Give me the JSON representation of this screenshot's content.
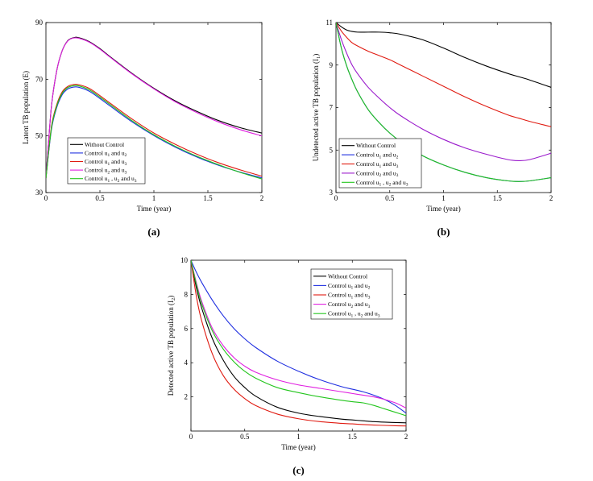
{
  "chart_data": [
    {
      "id": "a",
      "type": "line",
      "panel_label": "(a)",
      "xlabel": "Time (year)",
      "ylabel": "Latent TB population (E)",
      "xlim": [
        0,
        2
      ],
      "ylim": [
        30,
        90
      ],
      "xticks": [
        0,
        0.5,
        1,
        1.5,
        2
      ],
      "xtick_labels": [
        "0",
        "0.5",
        "1",
        "1.5",
        "2"
      ],
      "yticks": [
        30,
        50,
        70,
        90
      ],
      "ytick_labels": [
        "30",
        "50",
        "70",
        "90"
      ],
      "legend_position": "bottom-left",
      "x": [
        0,
        0.05,
        0.1,
        0.15,
        0.2,
        0.25,
        0.3,
        0.4,
        0.5,
        0.6,
        0.8,
        1.0,
        1.2,
        1.4,
        1.6,
        1.8,
        2.0
      ],
      "series": [
        {
          "name": "Without Control",
          "label_text": "Without Control",
          "color": "#000000",
          "values": [
            35,
            60,
            73,
            80,
            83.5,
            84.6,
            84.7,
            83.3,
            80.8,
            77.8,
            72.0,
            66.8,
            62.3,
            58.6,
            55.4,
            52.9,
            51.0
          ]
        },
        {
          "name": "Control u1 and u2",
          "label_text": "Control u and u",
          "subs": [
            "1",
            "2"
          ],
          "color": "#1f2fe0",
          "values": [
            35,
            52,
            60,
            64.5,
            66.5,
            67.2,
            67.2,
            65.8,
            63.2,
            60.4,
            54.9,
            50.1,
            46.0,
            42.5,
            39.6,
            37.2,
            35.2
          ]
        },
        {
          "name": "Control u1 and u3",
          "label_text": "Control u and u",
          "subs": [
            "1",
            "3"
          ],
          "color": "#e01a10",
          "values": [
            35,
            53,
            61,
            65.5,
            67.4,
            68.1,
            68.1,
            66.8,
            64.2,
            61.4,
            55.9,
            51.0,
            47.0,
            43.5,
            40.5,
            38.0,
            35.8
          ]
        },
        {
          "name": "Control u2 and u3",
          "label_text": "Control u and u",
          "subs": [
            "2",
            "3"
          ],
          "color": "#e020e0",
          "values": [
            35,
            60,
            73,
            80,
            83.4,
            84.5,
            84.5,
            83.1,
            80.6,
            77.6,
            71.8,
            66.6,
            62.0,
            58.2,
            54.9,
            52.2,
            50.0
          ]
        },
        {
          "name": "Control u1, u2 and u3",
          "label_text": "Control u , u and u",
          "subs": [
            "1",
            "2",
            "3"
          ],
          "color": "#22c51c",
          "values": [
            35,
            52.5,
            60.5,
            65,
            67,
            67.7,
            67.7,
            66.3,
            63.7,
            60.9,
            55.3,
            50.4,
            46.3,
            42.8,
            39.8,
            37.1,
            34.8
          ]
        }
      ]
    },
    {
      "id": "b",
      "type": "line",
      "panel_label": "(b)",
      "xlabel": "Time (year)",
      "ylabel": "Undetected active TB population (I1)",
      "ylabel_main": "Undetected active TB population (I",
      "ylabel_sub": "1",
      "ylabel_tail": ")",
      "xlim": [
        0,
        2
      ],
      "ylim": [
        3,
        11
      ],
      "xticks": [
        0,
        0.5,
        1,
        1.5,
        2
      ],
      "xtick_labels": [
        "0",
        "0.5",
        "1",
        "1.5",
        "2"
      ],
      "yticks": [
        3,
        5,
        7,
        9,
        11
      ],
      "ytick_labels": [
        "3",
        "5",
        "7",
        "9",
        "11"
      ],
      "legend_position": "bottom-left",
      "x": [
        0,
        0.05,
        0.1,
        0.15,
        0.2,
        0.3,
        0.4,
        0.5,
        0.6,
        0.8,
        1.0,
        1.2,
        1.4,
        1.6,
        1.7,
        1.8,
        2.0
      ],
      "series": [
        {
          "name": "Without Control",
          "label_text": "Without Control",
          "color": "#000000",
          "values": [
            11,
            10.8,
            10.65,
            10.58,
            10.55,
            10.55,
            10.55,
            10.52,
            10.45,
            10.2,
            9.8,
            9.35,
            8.95,
            8.6,
            8.45,
            8.3,
            7.95
          ]
        },
        {
          "name": "Control u1 and u2",
          "label_text": "Control u and u",
          "subs": [
            "1",
            "2"
          ],
          "color": "#1f2fe0",
          "values": [
            11,
            9.8,
            8.95,
            8.3,
            7.75,
            6.9,
            6.3,
            5.8,
            5.4,
            4.75,
            4.3,
            3.95,
            3.7,
            3.55,
            3.52,
            3.55,
            3.7
          ]
        },
        {
          "name": "Control u1 and u3",
          "label_text": "Control u and u",
          "subs": [
            "1",
            "3"
          ],
          "color": "#e01a10",
          "values": [
            11,
            10.6,
            10.3,
            10.05,
            9.9,
            9.65,
            9.45,
            9.25,
            9.0,
            8.5,
            8.0,
            7.5,
            7.05,
            6.65,
            6.5,
            6.35,
            6.1
          ]
        },
        {
          "name": "Control u2 and u3",
          "label_text": "Control u and u",
          "subs": [
            "2",
            "3"
          ],
          "color": "#9a1acc",
          "values": [
            11,
            10.2,
            9.55,
            9.0,
            8.6,
            7.95,
            7.45,
            7.0,
            6.62,
            6.0,
            5.5,
            5.1,
            4.8,
            4.55,
            4.5,
            4.55,
            4.85
          ]
        },
        {
          "name": "Control u1, u2 and u3",
          "label_text": "Control u , u and u",
          "subs": [
            "1",
            "2",
            "3"
          ],
          "color": "#22c51c",
          "values": [
            11,
            9.8,
            8.95,
            8.3,
            7.75,
            6.9,
            6.3,
            5.8,
            5.4,
            4.75,
            4.3,
            3.95,
            3.7,
            3.55,
            3.52,
            3.55,
            3.7
          ]
        }
      ]
    },
    {
      "id": "c",
      "type": "line",
      "panel_label": "(c)",
      "xlabel": "Time (year)",
      "ylabel": "Detected active TB population (I2)",
      "ylabel_main": "Detected active TB population (I",
      "ylabel_sub": "2",
      "ylabel_tail": ")",
      "xlim": [
        0,
        2
      ],
      "ylim": [
        0,
        10
      ],
      "xticks": [
        0,
        0.5,
        1,
        1.5,
        2
      ],
      "xtick_labels": [
        "0",
        "0.5",
        "1",
        "1.5",
        "2"
      ],
      "yticks": [
        2,
        4,
        6,
        8,
        10
      ],
      "ytick_labels": [
        "2",
        "4",
        "6",
        "8",
        "10"
      ],
      "legend_position": "top-right",
      "x": [
        0,
        0.05,
        0.1,
        0.2,
        0.3,
        0.4,
        0.5,
        0.6,
        0.8,
        1.0,
        1.2,
        1.4,
        1.5,
        1.6,
        1.7,
        1.8,
        1.9,
        2.0
      ],
      "series": [
        {
          "name": "Without Control",
          "label_text": "Without Control",
          "color": "#000000",
          "values": [
            10,
            8.4,
            7.2,
            5.4,
            4.15,
            3.2,
            2.55,
            2.05,
            1.4,
            1.05,
            0.85,
            0.7,
            0.65,
            0.6,
            0.55,
            0.52,
            0.5,
            0.48
          ]
        },
        {
          "name": "Control u1 and u2",
          "label_text": "Control u and u",
          "subs": [
            "1",
            "2"
          ],
          "color": "#1f2fe0",
          "values": [
            10,
            9.3,
            8.7,
            7.65,
            6.75,
            6.0,
            5.4,
            4.9,
            4.1,
            3.5,
            3.0,
            2.6,
            2.45,
            2.3,
            2.1,
            1.85,
            1.5,
            1.05
          ]
        },
        {
          "name": "Control u1 and u3",
          "label_text": "Control u and u",
          "subs": [
            "1",
            "3"
          ],
          "color": "#e01a10",
          "values": [
            10,
            7.9,
            6.45,
            4.5,
            3.25,
            2.45,
            1.9,
            1.5,
            1.0,
            0.72,
            0.55,
            0.45,
            0.42,
            0.38,
            0.35,
            0.33,
            0.31,
            0.3
          ]
        },
        {
          "name": "Control u2 and u3",
          "label_text": "Control u and u",
          "subs": [
            "2",
            "3"
          ],
          "color": "#e020e0",
          "values": [
            10,
            8.7,
            7.6,
            6.0,
            5.0,
            4.3,
            3.8,
            3.45,
            3.0,
            2.7,
            2.5,
            2.3,
            2.2,
            2.1,
            2.0,
            1.85,
            1.65,
            1.35
          ]
        },
        {
          "name": "Control u1, u2 and u3",
          "label_text": "Control u , u and u",
          "subs": [
            "1",
            "2",
            "3"
          ],
          "color": "#22c51c",
          "values": [
            10,
            8.6,
            7.45,
            5.85,
            4.8,
            4.05,
            3.5,
            3.1,
            2.55,
            2.25,
            2.0,
            1.8,
            1.72,
            1.65,
            1.5,
            1.3,
            1.1,
            0.9
          ]
        }
      ]
    }
  ]
}
